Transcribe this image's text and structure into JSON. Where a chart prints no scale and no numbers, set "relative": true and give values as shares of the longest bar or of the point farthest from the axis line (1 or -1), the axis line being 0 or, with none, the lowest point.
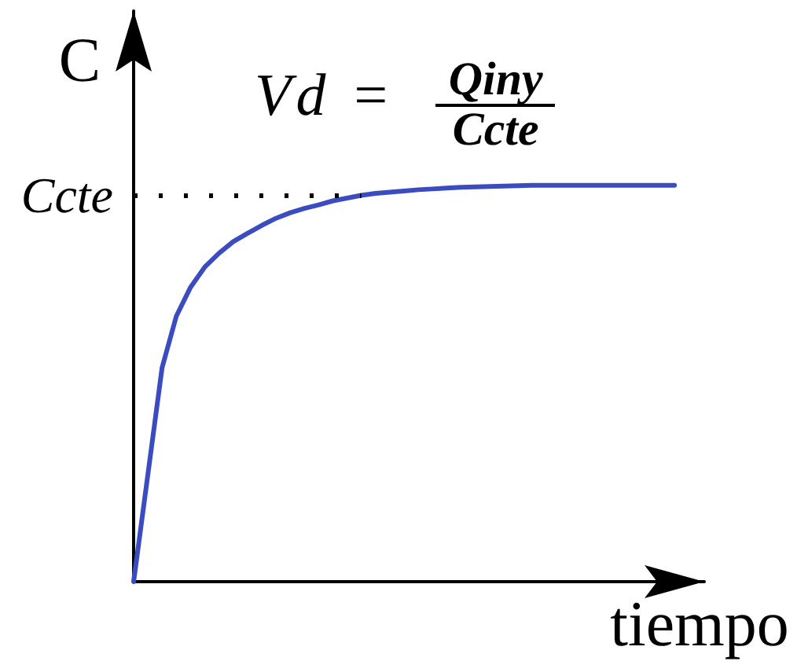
{
  "chart_data": {
    "type": "line",
    "xlabel": "tiempo",
    "ylabel": "C",
    "relative": true,
    "marker": "none",
    "line_style": "solid",
    "categories": [
      null,
      null,
      null,
      null,
      null,
      null,
      null,
      null,
      null,
      null,
      null,
      null,
      null,
      null,
      null,
      null,
      null,
      null,
      null,
      null,
      null,
      null,
      null,
      null,
      null,
      null,
      null,
      null,
      null,
      null,
      null,
      null,
      null,
      null,
      null,
      null,
      null,
      null,
      null
    ],
    "values": [
      0,
      0.27,
      0.54,
      0.67,
      0.743,
      0.794,
      0.829,
      0.858,
      0.879,
      0.899,
      0.917,
      0.931,
      0.942,
      0.951,
      0.961,
      0.968,
      0.975,
      0.98,
      0.983,
      0.986,
      0.989,
      0.991,
      0.993,
      0.995,
      0.996,
      0.997,
      0.998,
      0.999,
      1,
      1,
      1,
      1,
      1,
      1,
      1,
      1,
      1,
      1,
      1
    ],
    "color": "#3b4cc0",
    "ref_lines": [
      {
        "axis": "y",
        "value": 0.975,
        "label": "Ccte",
        "color": "#000000",
        "line_style": "dotted"
      }
    ],
    "annotations": [
      "Vd =",
      "Qiny",
      "Ccte"
    ]
  }
}
